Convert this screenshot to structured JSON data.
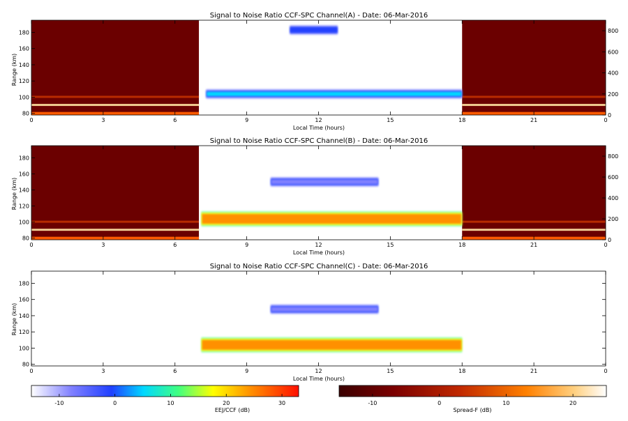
{
  "chart_data": [
    {
      "type": "heatmap",
      "title": "Signal to Noise Ratio CCF-SPC Channel(A) - Date: 06-Mar-2016",
      "xlabel": "Local Time (hours)",
      "ylabel": "Range (km)",
      "xlim": [
        0,
        24
      ],
      "ylim": [
        78,
        195
      ],
      "x_ticks": [
        "0",
        "3",
        "6",
        "9",
        "12",
        "15",
        "18",
        "21",
        "0"
      ],
      "y_ticks": [
        80,
        100,
        120,
        140,
        160,
        180
      ],
      "right_ticks": [
        0,
        200,
        400,
        600,
        800
      ],
      "right_lim": [
        0,
        900
      ],
      "night_segments": [
        [
          0,
          7
        ],
        [
          18,
          24
        ]
      ],
      "day_segment": [
        7,
        18
      ],
      "spreadf_bands_km": [
        80,
        90,
        100
      ],
      "echo_layers": [
        {
          "range_km": 104,
          "t_start": 7.3,
          "t_end": 18.0,
          "snr_db": 8
        },
        {
          "range_km": 183,
          "t_start": 10.8,
          "t_end": 12.8,
          "snr_db": 0
        }
      ]
    },
    {
      "type": "heatmap",
      "title": "Signal to Noise Ratio CCF-SPC Channel(B) - Date: 06-Mar-2016",
      "xlabel": "Local Time (hours)",
      "ylabel": "Range (km)",
      "xlim": [
        0,
        24
      ],
      "ylim": [
        78,
        195
      ],
      "x_ticks": [
        "0",
        "3",
        "6",
        "9",
        "12",
        "15",
        "18",
        "21",
        "0"
      ],
      "y_ticks": [
        80,
        100,
        120,
        140,
        160,
        180
      ],
      "right_ticks": [
        0,
        200,
        400,
        600,
        800
      ],
      "right_lim": [
        0,
        900
      ],
      "night_segments": [
        [
          0,
          7
        ],
        [
          18,
          24
        ]
      ],
      "day_segment": [
        7,
        18
      ],
      "spreadf_bands_km": [
        80,
        90,
        100
      ],
      "echo_layers": [
        {
          "range_km": 104,
          "t_start": 7.1,
          "t_end": 18.0,
          "snr_db": 28
        },
        {
          "range_km": 150,
          "t_start": 10.0,
          "t_end": 14.5,
          "snr_db": -5
        }
      ]
    },
    {
      "type": "heatmap",
      "title": "Signal to Noise Ratio CCF-SPC Channel(C) - Date: 06-Mar-2016",
      "xlabel": "Local Time (hours)",
      "ylabel": "Range (km)",
      "xlim": [
        0,
        24
      ],
      "ylim": [
        78,
        195
      ],
      "x_ticks": [
        "0",
        "3",
        "6",
        "9",
        "12",
        "15",
        "18",
        "21",
        "0"
      ],
      "y_ticks": [
        80,
        100,
        120,
        140,
        160,
        180
      ],
      "echo_layers": [
        {
          "range_km": 104,
          "t_start": 7.1,
          "t_end": 18.0,
          "snr_db": 28
        },
        {
          "range_km": 148,
          "t_start": 10.0,
          "t_end": 14.5,
          "snr_db": -5
        }
      ]
    }
  ],
  "colorbars": [
    {
      "label": "EEJ/CCF (dB)",
      "ticks": [
        -10,
        0,
        10,
        20,
        30
      ],
      "range": [
        -15,
        33
      ],
      "colormap": "rainbow",
      "colors": [
        "#ffffff",
        "#2040ff",
        "#00e0ff",
        "#40ff80",
        "#ffff00",
        "#ff8000",
        "#ff0000"
      ]
    },
    {
      "label": "Spread-F (dB)",
      "ticks": [
        -10,
        0,
        10,
        20
      ],
      "range": [
        -15,
        25
      ],
      "colormap": "hot",
      "colors": [
        "#4a0000",
        "#8b0000",
        "#d03000",
        "#ff8000",
        "#ffd080",
        "#ffffff"
      ]
    }
  ]
}
